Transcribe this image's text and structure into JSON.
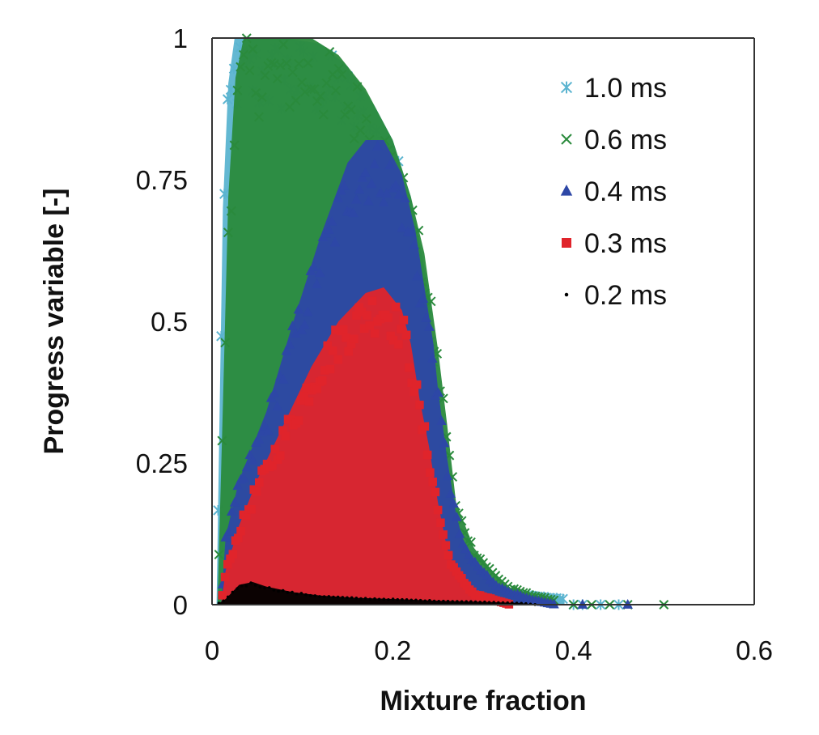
{
  "chart_data": {
    "type": "scatter",
    "title": "",
    "xlabel": "Mixture fraction",
    "ylabel": "Progress variable [-]",
    "xlim": [
      0,
      0.6
    ],
    "ylim": [
      0,
      1
    ],
    "xticks": [
      0,
      0.2,
      0.4,
      0.6
    ],
    "xtick_labels": [
      "0",
      "0.2",
      "0.4",
      "0.6"
    ],
    "yticks": [
      0,
      0.25,
      0.5,
      0.75,
      1
    ],
    "ytick_labels": [
      "0",
      "0.25",
      "0.5",
      "0.75",
      "1"
    ],
    "grid": false,
    "legend_position": "top-right",
    "series": [
      {
        "name": "1.0 ms",
        "marker": "asterisk",
        "color": "#5bb4d0",
        "envelope": [
          [
            0.005,
            0.0
          ],
          [
            0.008,
            0.3
          ],
          [
            0.012,
            0.7
          ],
          [
            0.018,
            0.92
          ],
          [
            0.025,
            1.0
          ],
          [
            0.08,
            1.0
          ],
          [
            0.12,
            0.99
          ],
          [
            0.15,
            0.95
          ],
          [
            0.18,
            0.88
          ],
          [
            0.2,
            0.82
          ],
          [
            0.22,
            0.72
          ],
          [
            0.24,
            0.55
          ],
          [
            0.25,
            0.32
          ],
          [
            0.26,
            0.12
          ],
          [
            0.28,
            0.06
          ],
          [
            0.3,
            0.04
          ],
          [
            0.33,
            0.02
          ],
          [
            0.36,
            0.015
          ],
          [
            0.38,
            0.012
          ],
          [
            0.39,
            0.01
          ]
        ],
        "scatter_points": [
          [
            0.4,
            0.0
          ],
          [
            0.41,
            0.0
          ],
          [
            0.43,
            0.0
          ],
          [
            0.45,
            0.0
          ]
        ]
      },
      {
        "name": "0.6 ms",
        "marker": "x",
        "color": "#2a8a3c",
        "envelope": [
          [
            0.006,
            0.0
          ],
          [
            0.012,
            0.35
          ],
          [
            0.018,
            0.72
          ],
          [
            0.026,
            0.93
          ],
          [
            0.035,
            1.0
          ],
          [
            0.11,
            1.0
          ],
          [
            0.14,
            0.97
          ],
          [
            0.17,
            0.91
          ],
          [
            0.2,
            0.82
          ],
          [
            0.22,
            0.72
          ],
          [
            0.235,
            0.62
          ],
          [
            0.25,
            0.45
          ],
          [
            0.26,
            0.32
          ],
          [
            0.27,
            0.18
          ],
          [
            0.29,
            0.1
          ],
          [
            0.31,
            0.06
          ],
          [
            0.33,
            0.03
          ],
          [
            0.36,
            0.015
          ],
          [
            0.38,
            0.008
          ]
        ],
        "scatter_points": [
          [
            0.4,
            0.0
          ],
          [
            0.42,
            0.0
          ],
          [
            0.44,
            0.0
          ],
          [
            0.46,
            0.0
          ],
          [
            0.5,
            0.0
          ]
        ]
      },
      {
        "name": "0.4 ms",
        "marker": "triangle",
        "color": "#2d47a6",
        "envelope": [
          [
            0.01,
            0.0
          ],
          [
            0.015,
            0.12
          ],
          [
            0.03,
            0.22
          ],
          [
            0.06,
            0.34
          ],
          [
            0.09,
            0.5
          ],
          [
            0.12,
            0.65
          ],
          [
            0.15,
            0.78
          ],
          [
            0.17,
            0.82
          ],
          [
            0.19,
            0.82
          ],
          [
            0.21,
            0.76
          ],
          [
            0.225,
            0.66
          ],
          [
            0.235,
            0.56
          ],
          [
            0.245,
            0.46
          ],
          [
            0.25,
            0.38
          ],
          [
            0.26,
            0.26
          ],
          [
            0.27,
            0.16
          ],
          [
            0.28,
            0.1
          ],
          [
            0.3,
            0.06
          ],
          [
            0.32,
            0.03
          ],
          [
            0.35,
            0.01
          ],
          [
            0.38,
            0.0
          ]
        ],
        "scatter_points": [
          [
            0.41,
            0.0
          ],
          [
            0.46,
            0.0
          ]
        ]
      },
      {
        "name": "0.3 ms",
        "marker": "square",
        "color": "#e0242b",
        "envelope": [
          [
            0.01,
            0.0
          ],
          [
            0.015,
            0.06
          ],
          [
            0.03,
            0.14
          ],
          [
            0.05,
            0.22
          ],
          [
            0.08,
            0.32
          ],
          [
            0.11,
            0.42
          ],
          [
            0.14,
            0.5
          ],
          [
            0.17,
            0.55
          ],
          [
            0.19,
            0.56
          ],
          [
            0.21,
            0.52
          ],
          [
            0.22,
            0.46
          ],
          [
            0.23,
            0.36
          ],
          [
            0.24,
            0.28
          ],
          [
            0.25,
            0.18
          ],
          [
            0.26,
            0.1
          ],
          [
            0.27,
            0.06
          ],
          [
            0.29,
            0.02
          ],
          [
            0.31,
            0.01
          ],
          [
            0.33,
            0.0
          ]
        ],
        "scatter_points": []
      },
      {
        "name": "0.2 ms",
        "marker": "dot",
        "color": "#000000",
        "envelope": [
          [
            0.005,
            0.0
          ],
          [
            0.015,
            0.01
          ],
          [
            0.03,
            0.035
          ],
          [
            0.045,
            0.04
          ],
          [
            0.06,
            0.032
          ],
          [
            0.09,
            0.022
          ],
          [
            0.12,
            0.016
          ],
          [
            0.16,
            0.012
          ],
          [
            0.2,
            0.01
          ],
          [
            0.25,
            0.007
          ],
          [
            0.3,
            0.005
          ],
          [
            0.34,
            0.003
          ],
          [
            0.36,
            0.0
          ]
        ],
        "scatter_points": []
      }
    ]
  }
}
